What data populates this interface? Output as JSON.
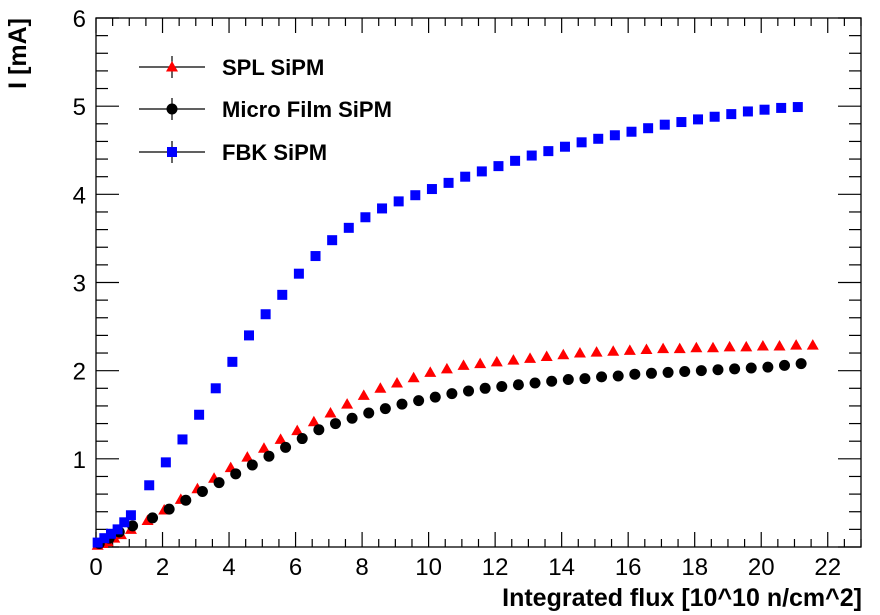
{
  "chart_data": {
    "type": "scatter",
    "title": "",
    "xlabel": "Integrated flux [10^10 n/cm^2]",
    "ylabel": "I [mA]",
    "xlim": [
      0,
      23
    ],
    "ylim": [
      0,
      6
    ],
    "x_ticks": [
      "0",
      "2",
      "4",
      "6",
      "8",
      "10",
      "12",
      "14",
      "16",
      "18",
      "20",
      "22"
    ],
    "y_ticks": [
      "1",
      "2",
      "3",
      "4",
      "5",
      "6"
    ],
    "legend_position": "top-left",
    "series": [
      {
        "name": "SPL SiPM",
        "marker": "triangle",
        "color": "#ff0000",
        "x": [
          0.05,
          0.2,
          0.35,
          0.55,
          0.75,
          1.05,
          1.55,
          2.05,
          2.55,
          3.05,
          3.55,
          4.05,
          4.55,
          5.05,
          5.55,
          6.05,
          6.55,
          7.05,
          7.55,
          8.05,
          8.55,
          9.05,
          9.55,
          10.05,
          10.55,
          11.05,
          11.55,
          12.05,
          12.55,
          13.05,
          13.55,
          14.05,
          14.55,
          15.05,
          15.55,
          16.05,
          16.55,
          17.05,
          17.55,
          18.05,
          18.55,
          19.05,
          19.55,
          20.05,
          20.55,
          21.05,
          21.55
        ],
        "y": [
          0.02,
          0.04,
          0.06,
          0.1,
          0.14,
          0.2,
          0.3,
          0.42,
          0.54,
          0.66,
          0.78,
          0.9,
          1.02,
          1.12,
          1.22,
          1.32,
          1.42,
          1.52,
          1.62,
          1.72,
          1.8,
          1.86,
          1.92,
          1.98,
          2.02,
          2.06,
          2.08,
          2.1,
          2.12,
          2.14,
          2.16,
          2.18,
          2.2,
          2.21,
          2.22,
          2.23,
          2.24,
          2.25,
          2.25,
          2.26,
          2.26,
          2.27,
          2.27,
          2.28,
          2.28,
          2.29,
          2.29
        ]
      },
      {
        "name": "Micro Film SiPM",
        "marker": "circle",
        "color": "#000000",
        "x": [
          0.1,
          0.4,
          0.7,
          1.1,
          1.7,
          2.2,
          2.7,
          3.2,
          3.7,
          4.2,
          4.7,
          5.2,
          5.7,
          6.2,
          6.7,
          7.2,
          7.7,
          8.2,
          8.7,
          9.2,
          9.7,
          10.2,
          10.7,
          11.2,
          11.7,
          12.2,
          12.7,
          13.2,
          13.7,
          14.2,
          14.7,
          15.2,
          15.7,
          16.2,
          16.7,
          17.2,
          17.7,
          18.2,
          18.7,
          19.2,
          19.7,
          20.2,
          20.7,
          21.2
        ],
        "y": [
          0.04,
          0.1,
          0.17,
          0.24,
          0.33,
          0.43,
          0.53,
          0.63,
          0.73,
          0.83,
          0.93,
          1.03,
          1.13,
          1.23,
          1.33,
          1.4,
          1.46,
          1.52,
          1.57,
          1.62,
          1.66,
          1.7,
          1.74,
          1.77,
          1.8,
          1.82,
          1.84,
          1.86,
          1.88,
          1.9,
          1.91,
          1.93,
          1.94,
          1.96,
          1.97,
          1.98,
          1.99,
          2.0,
          2.01,
          2.02,
          2.03,
          2.04,
          2.06,
          2.08
        ]
      },
      {
        "name": "FBK SiPM",
        "marker": "square",
        "color": "#0000ff",
        "x": [
          0.05,
          0.25,
          0.45,
          0.65,
          0.85,
          1.05,
          1.6,
          2.1,
          2.6,
          3.1,
          3.6,
          4.1,
          4.6,
          5.1,
          5.6,
          6.1,
          6.6,
          7.1,
          7.6,
          8.1,
          8.6,
          9.1,
          9.6,
          10.1,
          10.6,
          11.1,
          11.6,
          12.1,
          12.6,
          13.1,
          13.6,
          14.1,
          14.6,
          15.1,
          15.6,
          16.1,
          16.6,
          17.1,
          17.6,
          18.1,
          18.6,
          19.1,
          19.6,
          20.1,
          20.6,
          21.1
        ],
        "y": [
          0.05,
          0.1,
          0.15,
          0.2,
          0.28,
          0.36,
          0.7,
          0.96,
          1.22,
          1.5,
          1.8,
          2.1,
          2.4,
          2.64,
          2.86,
          3.1,
          3.3,
          3.48,
          3.62,
          3.74,
          3.84,
          3.92,
          3.99,
          4.06,
          4.13,
          4.2,
          4.26,
          4.32,
          4.38,
          4.44,
          4.49,
          4.54,
          4.59,
          4.63,
          4.67,
          4.71,
          4.75,
          4.79,
          4.82,
          4.85,
          4.88,
          4.91,
          4.94,
          4.96,
          4.98,
          4.99
        ]
      }
    ]
  }
}
